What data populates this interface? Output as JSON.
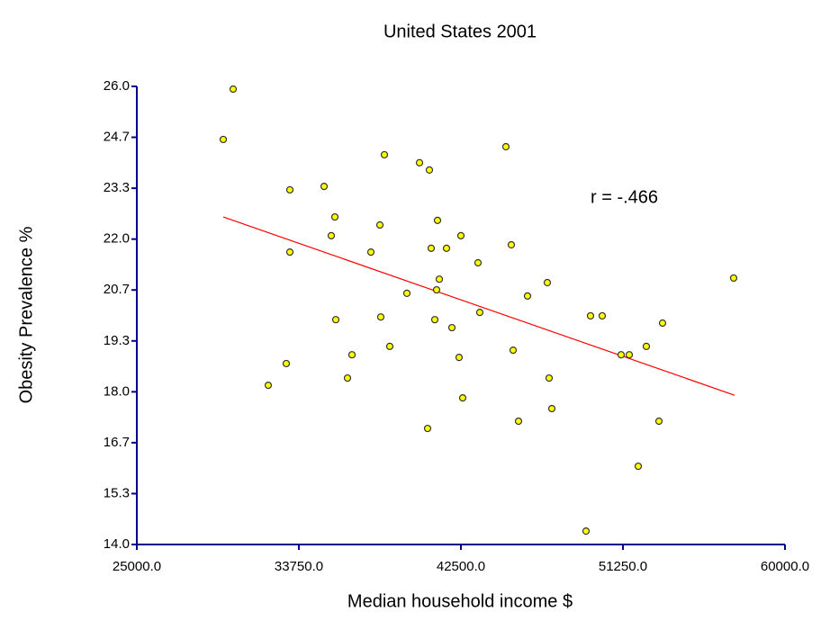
{
  "chart_data": {
    "type": "scatter",
    "title": "United States 2001",
    "x_label": "Median household income $",
    "y_label": "Obesity Prevalence %",
    "annotation": "r = -.466",
    "xlim": [
      25000,
      60000
    ],
    "ylim": [
      14,
      26
    ],
    "xticks": [
      {
        "value": 25000,
        "label": "25000.0"
      },
      {
        "value": 33750,
        "label": "33750.0"
      },
      {
        "value": 42500,
        "label": "42500.0"
      },
      {
        "value": 51250,
        "label": "51250.0"
      },
      {
        "value": 60000,
        "label": "60000.0"
      }
    ],
    "yticks": [
      {
        "value": 14,
        "label": "14.0"
      },
      {
        "value": 15.333,
        "label": "15.3"
      },
      {
        "value": 16.667,
        "label": "16.7"
      },
      {
        "value": 18,
        "label": "18.0"
      },
      {
        "value": 19.333,
        "label": "19.3"
      },
      {
        "value": 20.667,
        "label": "20.7"
      },
      {
        "value": 22,
        "label": "22.0"
      },
      {
        "value": 23.333,
        "label": "23.3"
      },
      {
        "value": 24.667,
        "label": "24.7"
      },
      {
        "value": 26,
        "label": "26.0"
      }
    ],
    "color": "#ffff00",
    "x": [
      29667,
      30201,
      32097,
      33069,
      33264,
      33264,
      35111,
      35500,
      35694,
      35743,
      36375,
      36618,
      37639,
      38125,
      38173,
      38368,
      38659,
      39583,
      40264,
      40798,
      40701,
      40895,
      41090,
      41187,
      41236,
      41333,
      41722,
      42014,
      42402,
      42500,
      42597,
      43423,
      43520,
      44930,
      45222,
      45319,
      45611,
      46097,
      47166,
      47263,
      47409,
      49256,
      49499,
      50131,
      51152,
      51590,
      52076,
      52513,
      53194,
      53388,
      57228
    ],
    "values": [
      24.61,
      25.93,
      18.17,
      18.74,
      23.29,
      21.66,
      23.38,
      22.09,
      22.58,
      19.89,
      18.36,
      18.97,
      21.66,
      22.37,
      19.96,
      24.21,
      19.19,
      20.58,
      24.0,
      23.81,
      17.04,
      21.76,
      19.89,
      20.67,
      22.49,
      20.95,
      21.76,
      19.68,
      18.9,
      22.09,
      17.84,
      21.38,
      20.08,
      24.42,
      21.85,
      19.09,
      17.23,
      20.51,
      20.86,
      18.36,
      17.56,
      14.35,
      19.99,
      19.99,
      18.97,
      18.97,
      16.05,
      19.19,
      17.23,
      19.8,
      20.98
    ],
    "trendline": {
      "color": "#ff0000",
      "x": [
        29667,
        57278
      ],
      "y": [
        22.58,
        17.91
      ]
    }
  }
}
